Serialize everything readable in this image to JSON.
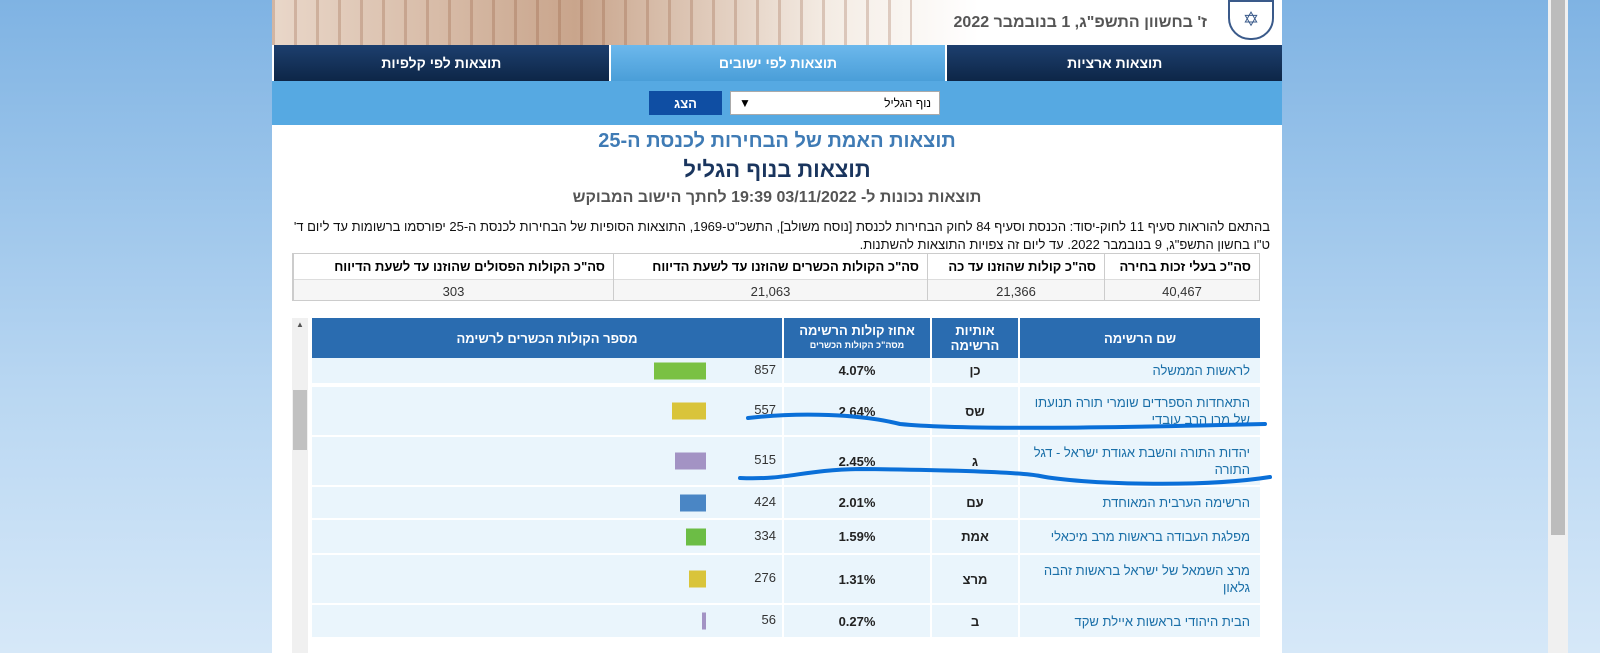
{
  "header": {
    "date": "ז' בחשוון התשפ\"ג, 1 בנובמבר 2022",
    "seal": "ישראל"
  },
  "nav": {
    "tabs": [
      {
        "label": "תוצאות ארציות",
        "active": false
      },
      {
        "label": "תוצאות לפי ישובים",
        "active": true
      },
      {
        "label": "תוצאות לפי קלפיות",
        "active": false
      }
    ]
  },
  "filter": {
    "selected": "נוף הגליל",
    "arrow": "▼",
    "button": "הצג"
  },
  "titles": {
    "main": "תוצאות האמת של הבחירות לכנסת ה-25",
    "sub": "תוצאות בנוף הגליל",
    "asof": "תוצאות נכונות ל- 03/11/2022 19:39  לחתך הישוב המבוקש"
  },
  "notice": "בהתאם להוראות סעיף 11 לחוק-יסוד: הכנסת וסעיף 84 לחוק הבחירות לכנסת [נוסח משולב], התשכ\"ט-1969, התוצאות הסופיות של הבחירות לכנסת ה-25 יפורסמו ברשומות עד ליום ד' ט\"ו בחשון התשפ\"ג, 9 בנובמבר 2022. עד ליום זה צפויות התוצאות להשתנות.",
  "summary": [
    {
      "label": "סה\"כ בעלי זכות בחירה",
      "value": "40,467"
    },
    {
      "label": "סה\"כ קולות שהוזנו עד כה",
      "value": "21,366"
    },
    {
      "label": "סה\"כ הקולות הכשרים שהוזנו עד לשעת הדיווח",
      "value": "21,063"
    },
    {
      "label": "סה\"כ הקולות הפסולים שהוזנו עד לשעת הדיווח",
      "value": "303"
    }
  ],
  "table": {
    "headers": {
      "name": "שם הרשימה",
      "letters": "אותיות הרשימה",
      "pct": "אחוז קולות הרשימה",
      "pct_sub": "מסה\"כ הקולות הכשרים",
      "votes": "מספר הקולות הכשרים לרשימה"
    },
    "rows": [
      {
        "name": "לראשות הממשלה",
        "letters": "כן",
        "pct": "4.07%",
        "votes": 857,
        "color": "#7ac143"
      },
      {
        "name": "התאחדות הספרדים שומרי תורה תנועתו של מרן הרב עובדי",
        "letters": "שס",
        "pct": "2.64%",
        "votes": 557,
        "color": "#d9c43a"
      },
      {
        "name": "יהדות התורה והשבת אגודת ישראל - דגל התורה",
        "letters": "ג",
        "pct": "2.45%",
        "votes": 515,
        "color": "#a393c4"
      },
      {
        "name": "הרשימה הערבית המאוחדת",
        "letters": "עם",
        "pct": "2.01%",
        "votes": 424,
        "color": "#4a86c5"
      },
      {
        "name": "מפלגת העבודה בראשות מרב מיכאלי",
        "letters": "אמת",
        "pct": "1.59%",
        "votes": 334,
        "color": "#6cbd45"
      },
      {
        "name": "מרצ השמאל של ישראל בראשות זהבה גלאון",
        "letters": "מרצ",
        "pct": "1.31%",
        "votes": 276,
        "color": "#d9c43a"
      },
      {
        "name": "הבית היהודי בראשות איילת שקד",
        "letters": "ב",
        "pct": "0.27%",
        "votes": 56,
        "color": "#a393c4"
      }
    ]
  }
}
